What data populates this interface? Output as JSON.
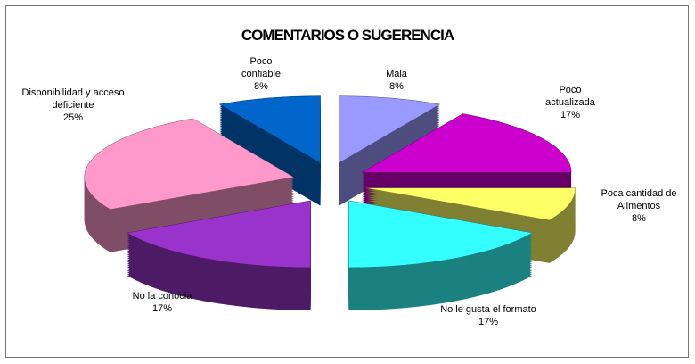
{
  "chart_data": {
    "type": "pie3d",
    "title": "COMENTARIOS O SUGERENCIA",
    "categories": [
      "Mala",
      "Poco actualizada",
      "Poca cantidad de Alimentos",
      "No le gusta el formato",
      "No la conocia",
      "Disponibilidad y acceso deficiente",
      "Poco confiable"
    ],
    "values": [
      8,
      17,
      8,
      17,
      17,
      25,
      8
    ],
    "value_labels": [
      "8%",
      "17%",
      "8%",
      "17%",
      "17%",
      "25%",
      "8%"
    ],
    "colors": [
      "#9999ff",
      "#cc00cc",
      "#ffff66",
      "#33ffff",
      "#9933cc",
      "#ff99cc",
      "#0066cc"
    ]
  }
}
